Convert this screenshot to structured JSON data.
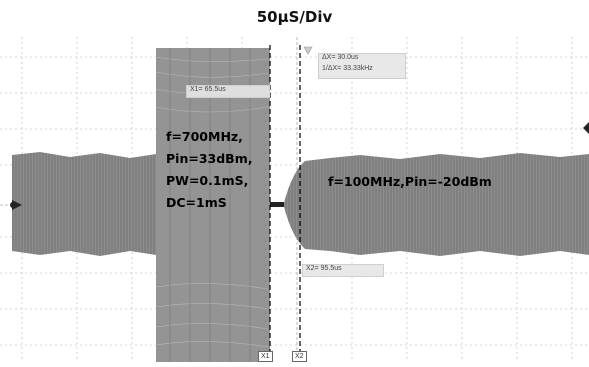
{
  "header": {
    "timebase": "50µS/Div"
  },
  "cursors": {
    "x1_readout": "X1= 65.5us",
    "x2_readout": "X2= 95.5us",
    "delta_readout": "ΔX= 30.0us",
    "inv_delta_readout": "1/ΔX= 33.33kHz",
    "x1_tag": "X1",
    "x2_tag": "X2"
  },
  "annotations": {
    "burst_line1": "f=700MHz,",
    "burst_line2": "Pin=33dBm,",
    "burst_line3": "PW=0.1mS,",
    "burst_line4": "DC=1mS",
    "cw_label": "f=100MHz,Pin=-20dBm"
  },
  "colors": {
    "grid": "#c8c8c8",
    "trace": "#808080",
    "cursor": "#000000"
  }
}
